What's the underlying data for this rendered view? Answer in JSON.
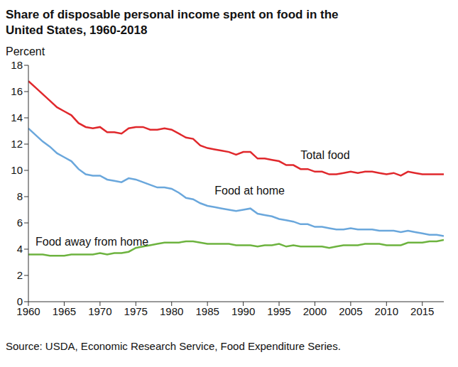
{
  "chart_data": {
    "type": "line",
    "title": "Share of disposable personal income spent on food in the United States, 1960-2018",
    "y_label": "Percent",
    "source": "Source: USDA, Economic Research Service, Food Expenditure Series.",
    "x": [
      1960,
      1961,
      1962,
      1963,
      1964,
      1965,
      1966,
      1967,
      1968,
      1969,
      1970,
      1971,
      1972,
      1973,
      1974,
      1975,
      1976,
      1977,
      1978,
      1979,
      1980,
      1981,
      1982,
      1983,
      1984,
      1985,
      1986,
      1987,
      1988,
      1989,
      1990,
      1991,
      1992,
      1993,
      1994,
      1995,
      1996,
      1997,
      1998,
      1999,
      2000,
      2001,
      2002,
      2003,
      2004,
      2005,
      2006,
      2007,
      2008,
      2009,
      2010,
      2011,
      2012,
      2013,
      2014,
      2015,
      2016,
      2017,
      2018
    ],
    "series": [
      {
        "name": "Total food",
        "color": "#e0282c",
        "values": [
          16.8,
          16.3,
          15.8,
          15.3,
          14.8,
          14.5,
          14.2,
          13.6,
          13.3,
          13.2,
          13.3,
          12.9,
          12.9,
          12.8,
          13.2,
          13.3,
          13.3,
          13.1,
          13.1,
          13.2,
          13.1,
          12.8,
          12.5,
          12.4,
          11.9,
          11.7,
          11.6,
          11.5,
          11.4,
          11.2,
          11.4,
          11.4,
          10.9,
          10.9,
          10.8,
          10.7,
          10.4,
          10.4,
          10.1,
          10.1,
          9.9,
          9.9,
          9.7,
          9.7,
          9.8,
          9.9,
          9.8,
          9.9,
          9.9,
          9.8,
          9.7,
          9.8,
          9.6,
          9.9,
          9.8,
          9.7,
          9.7,
          9.7,
          9.7
        ]
      },
      {
        "name": "Food at home",
        "color": "#6aa7dc",
        "values": [
          13.2,
          12.7,
          12.2,
          11.8,
          11.3,
          11.0,
          10.7,
          10.1,
          9.7,
          9.6,
          9.6,
          9.3,
          9.2,
          9.1,
          9.4,
          9.3,
          9.1,
          8.9,
          8.7,
          8.7,
          8.6,
          8.3,
          7.9,
          7.8,
          7.5,
          7.3,
          7.2,
          7.1,
          7.0,
          6.9,
          7.0,
          7.1,
          6.7,
          6.6,
          6.5,
          6.3,
          6.2,
          6.1,
          5.9,
          5.9,
          5.7,
          5.7,
          5.6,
          5.5,
          5.5,
          5.6,
          5.5,
          5.5,
          5.5,
          5.4,
          5.4,
          5.4,
          5.3,
          5.4,
          5.3,
          5.2,
          5.1,
          5.1,
          5.0
        ]
      },
      {
        "name": "Food away from home",
        "color": "#6db33f",
        "values": [
          3.6,
          3.6,
          3.6,
          3.5,
          3.5,
          3.5,
          3.6,
          3.6,
          3.6,
          3.6,
          3.7,
          3.6,
          3.7,
          3.7,
          3.8,
          4.1,
          4.2,
          4.3,
          4.4,
          4.5,
          4.5,
          4.5,
          4.6,
          4.6,
          4.5,
          4.4,
          4.4,
          4.4,
          4.4,
          4.3,
          4.3,
          4.3,
          4.2,
          4.3,
          4.3,
          4.4,
          4.2,
          4.3,
          4.2,
          4.2,
          4.2,
          4.2,
          4.1,
          4.2,
          4.3,
          4.3,
          4.3,
          4.4,
          4.4,
          4.4,
          4.3,
          4.3,
          4.3,
          4.5,
          4.5,
          4.5,
          4.6,
          4.6,
          4.7
        ]
      }
    ],
    "xlim": [
      1960,
      2018
    ],
    "xticks": [
      1960,
      1965,
      1970,
      1975,
      1980,
      1985,
      1990,
      1995,
      2000,
      2005,
      2010,
      2015
    ],
    "ylim": [
      0,
      18
    ],
    "yticks": [
      0,
      2,
      4,
      6,
      8,
      10,
      12,
      14,
      16,
      18
    ],
    "grid": false
  }
}
